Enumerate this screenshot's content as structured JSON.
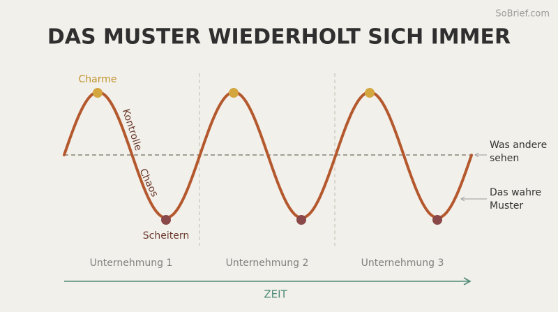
{
  "watermark": "SoBrief.com",
  "title": "DAS MUSTER WIEDERHOLT SICH IMMER",
  "curve_labels": {
    "peak": "Charme",
    "rise": "Kontrolle",
    "fall": "Chaos",
    "trough": "Scheitern"
  },
  "annotations": [
    {
      "lines": [
        "Was andere",
        "sehen"
      ]
    },
    {
      "lines": [
        "Das wahre",
        "Muster"
      ]
    }
  ],
  "phases": [
    "Unternehmung 1",
    "Unternehmung 2",
    "Unternehmung 3"
  ],
  "axis_label": "ZEIT"
}
